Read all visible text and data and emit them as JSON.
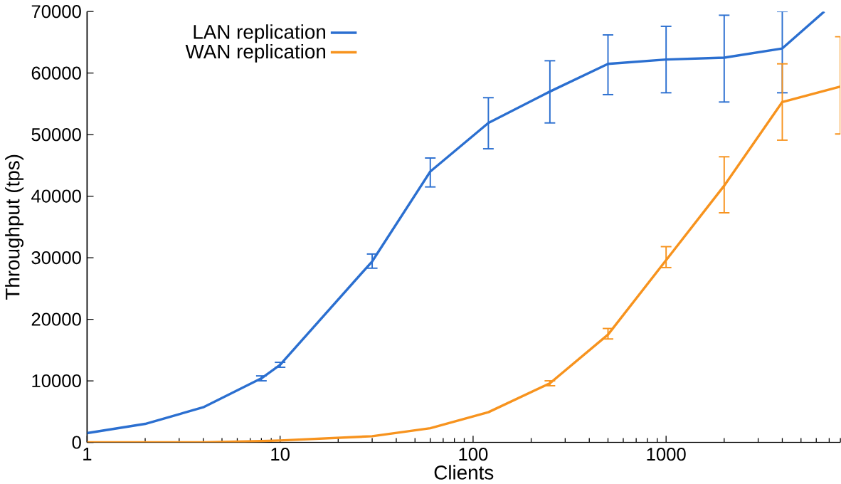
{
  "chart_data": {
    "type": "line",
    "xlabel": "Clients",
    "ylabel": "Throughput (tps)",
    "log": "x",
    "xlim": [
      1,
      8000
    ],
    "xticks": [
      1,
      10,
      100,
      1000
    ],
    "ylim": [
      0,
      70000
    ],
    "yticks": [
      0,
      10000,
      20000,
      30000,
      40000,
      50000,
      60000,
      70000
    ],
    "legend": "top left",
    "grid": false,
    "marker": "none",
    "line_style": "solid",
    "series": [
      {
        "name": "LAN replication",
        "color": "#2b6fd0",
        "x": [
          1,
          2,
          4,
          8,
          10,
          30,
          60,
          120,
          250,
          500,
          1000,
          2000,
          4000,
          6600
        ],
        "values": [
          1500,
          3000,
          5700,
          10400,
          12600,
          29400,
          44000,
          51900,
          57000,
          61500,
          62200,
          62500,
          64000,
          70000
        ],
        "errors": [
          null,
          null,
          null,
          [
            10000,
            10800
          ],
          [
            12200,
            13000
          ],
          [
            28300,
            30600
          ],
          [
            41500,
            46200
          ],
          [
            47700,
            56000
          ],
          [
            51900,
            62000
          ],
          [
            56500,
            66200
          ],
          [
            56800,
            67600
          ],
          [
            55300,
            69400
          ],
          [
            56800,
            70000
          ],
          null
        ]
      },
      {
        "name": "WAN replication",
        "color": "#f7931e",
        "x": [
          1,
          2,
          4,
          8,
          10,
          30,
          60,
          120,
          250,
          500,
          1000,
          2000,
          4000,
          8000
        ],
        "values": [
          0,
          0,
          0,
          200,
          300,
          1000,
          2300,
          4900,
          9600,
          17500,
          29600,
          41700,
          55300,
          57800
        ],
        "errors": [
          null,
          null,
          null,
          null,
          null,
          null,
          null,
          null,
          [
            9200,
            10000
          ],
          [
            16800,
            18500
          ],
          [
            28400,
            31800
          ],
          [
            37300,
            46400
          ],
          [
            49100,
            61500
          ],
          [
            50100,
            65900
          ]
        ]
      }
    ]
  }
}
